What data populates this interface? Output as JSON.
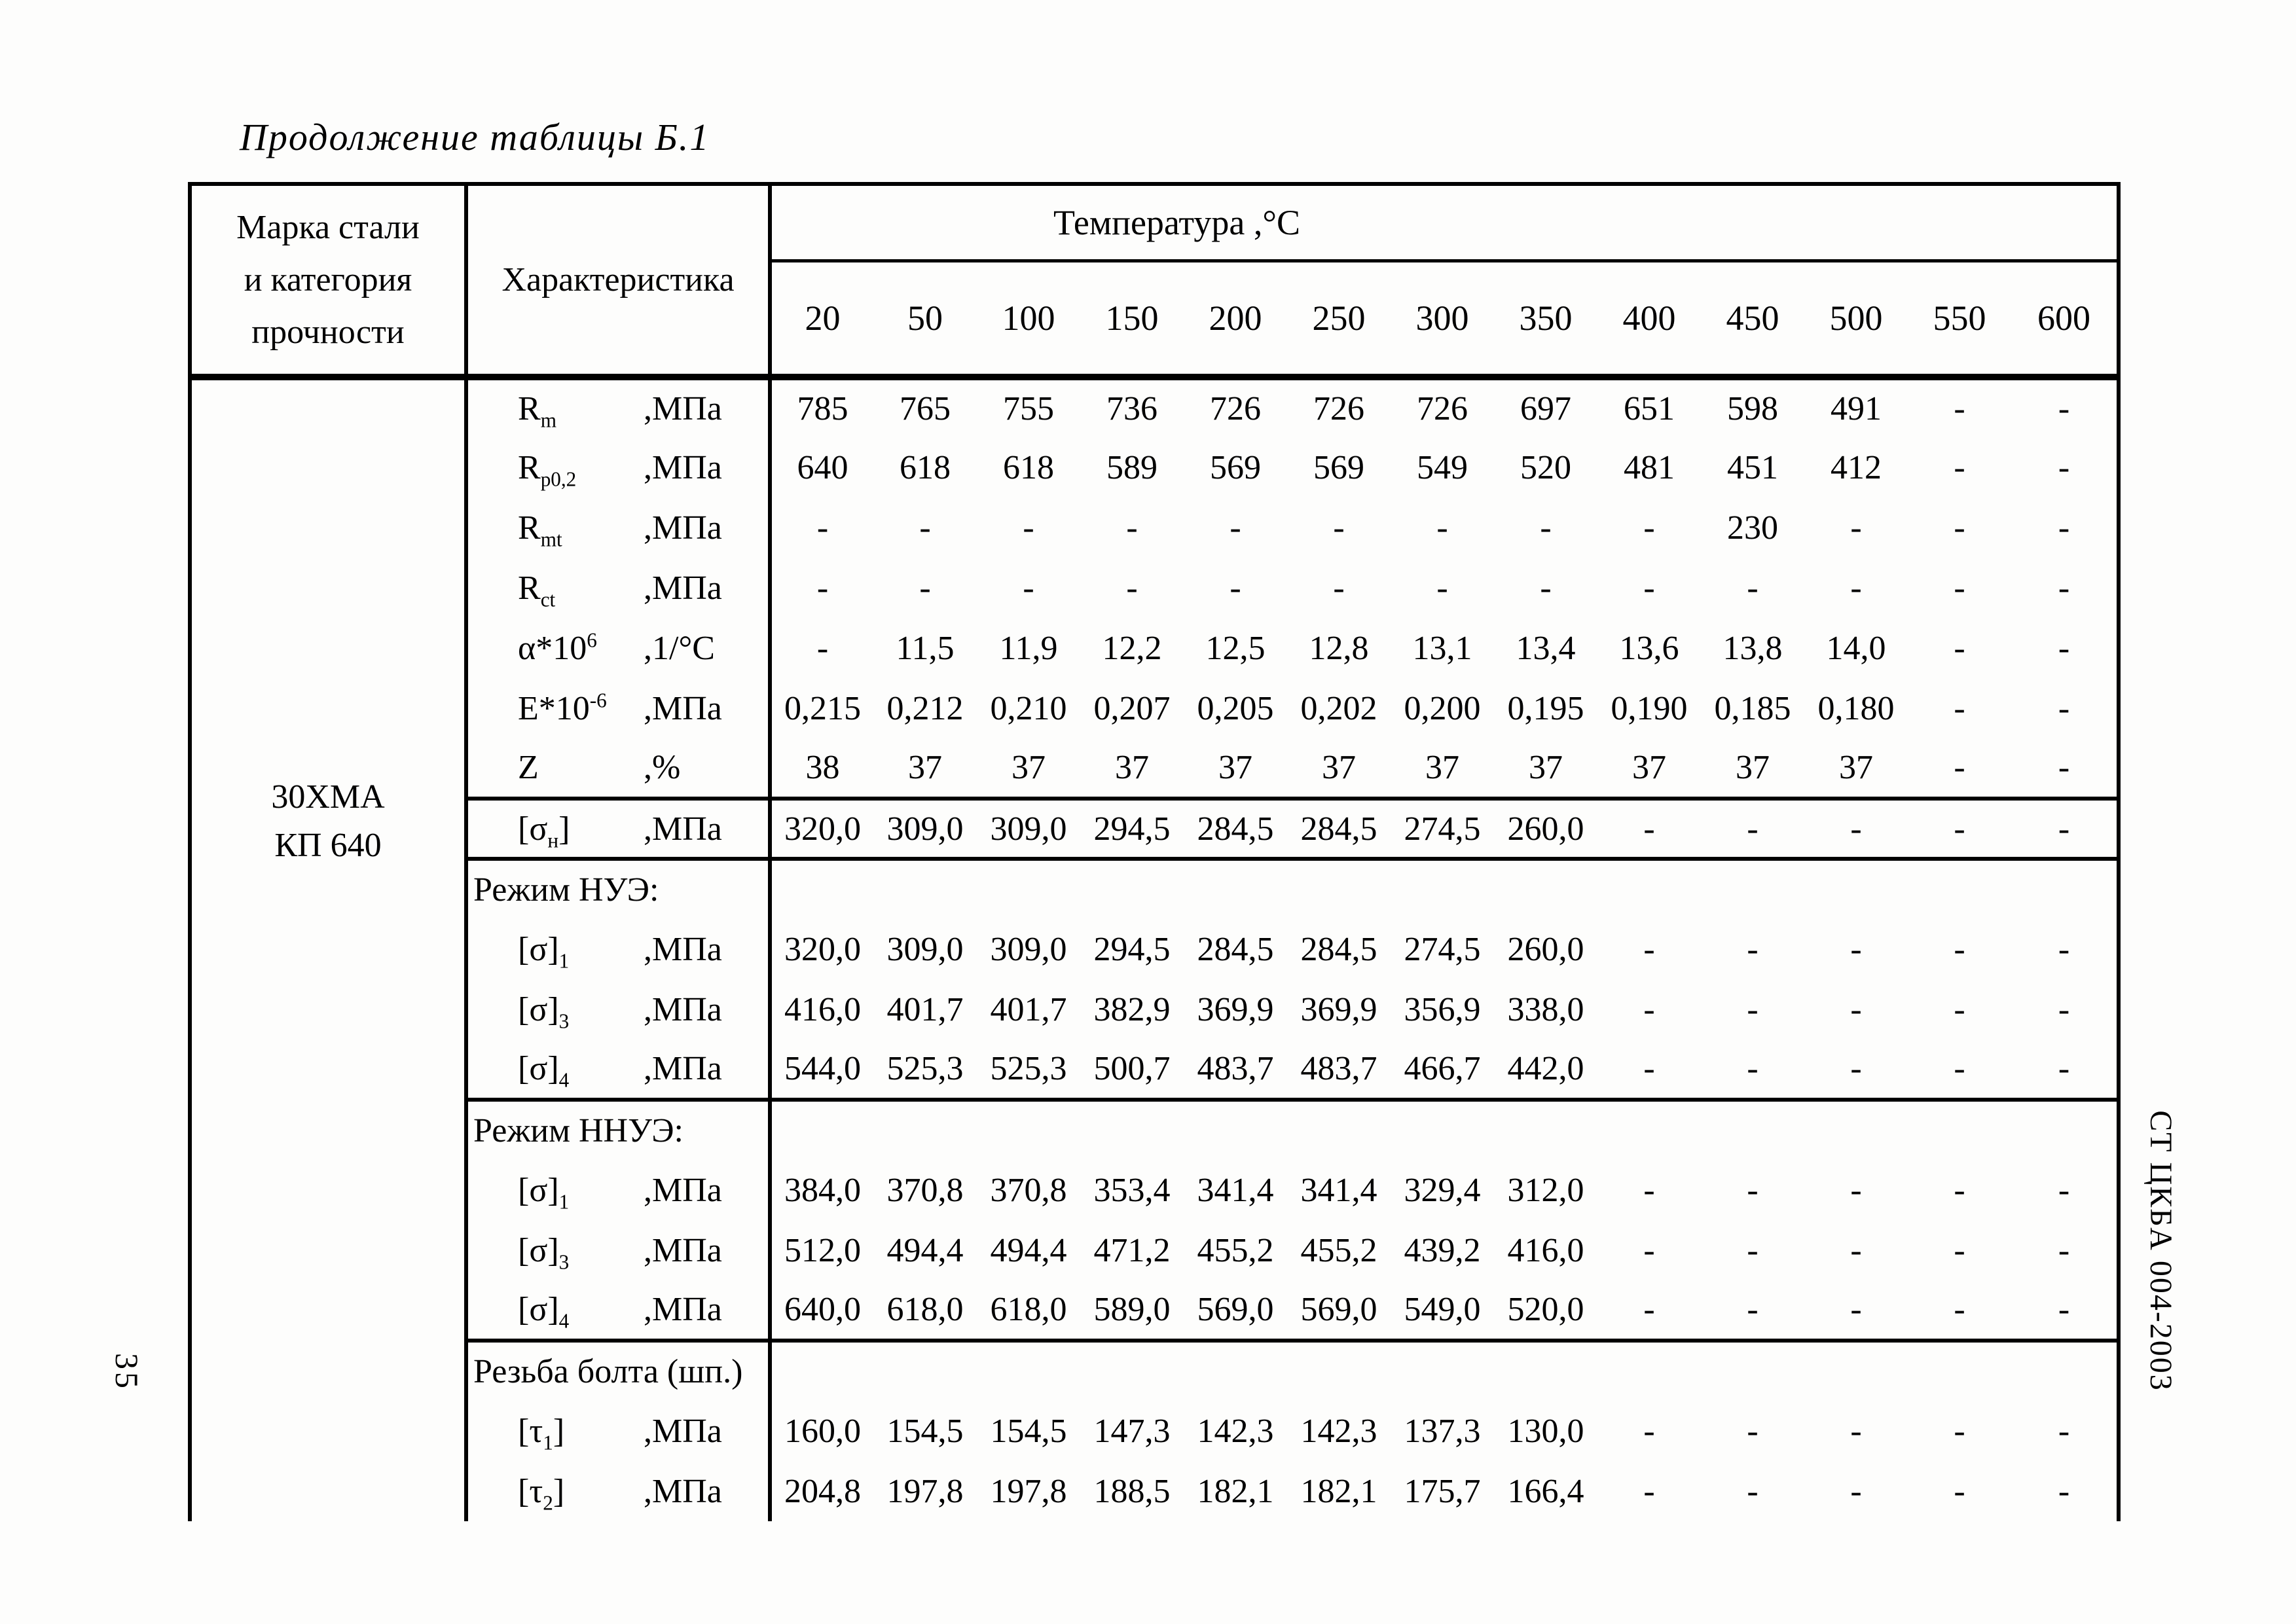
{
  "page": {
    "caption": "Продолжение таблицы Б.1",
    "left_margin_number": "35",
    "right_margin_text": "СТ ЦКБА 004-2003"
  },
  "table": {
    "header": {
      "col1_lines": [
        "Марка стали",
        "и категория",
        "прочности"
      ],
      "col2": "Характеристика",
      "temp_title": "Температура ,°С",
      "temps": [
        "20",
        "50",
        "100",
        "150",
        "200",
        "250",
        "300",
        "350",
        "400",
        "450",
        "500",
        "550",
        "600"
      ]
    },
    "steel": {
      "line1": "30ХМА",
      "line2": "КП 640"
    },
    "rows": [
      {
        "type": "data",
        "base": "R",
        "sub": "m",
        "unit": ",МПа",
        "values": [
          "785",
          "765",
          "755",
          "736",
          "726",
          "726",
          "726",
          "697",
          "651",
          "598",
          "491",
          "-",
          "-"
        ]
      },
      {
        "type": "data",
        "base": "R",
        "sub": "p0,2",
        "unit": ",МПа",
        "values": [
          "640",
          "618",
          "618",
          "589",
          "569",
          "569",
          "549",
          "520",
          "481",
          "451",
          "412",
          "-",
          "-"
        ]
      },
      {
        "type": "data",
        "base": "R",
        "sub": "mt",
        "unit": ",МПа",
        "values": [
          "-",
          "-",
          "-",
          "-",
          "-",
          "-",
          "-",
          "-",
          "-",
          "230",
          "-",
          "-",
          "-"
        ]
      },
      {
        "type": "data",
        "base": "R",
        "sub": "ct",
        "unit": ",МПа",
        "values": [
          "-",
          "-",
          "-",
          "-",
          "-",
          "-",
          "-",
          "-",
          "-",
          "-",
          "-",
          "-",
          "-"
        ]
      },
      {
        "type": "data",
        "base": "α*10",
        "sup": "6",
        "unit": ",1/°С",
        "values": [
          "-",
          "11,5",
          "11,9",
          "12,2",
          "12,5",
          "12,8",
          "13,1",
          "13,4",
          "13,6",
          "13,8",
          "14,0",
          "-",
          "-"
        ]
      },
      {
        "type": "data",
        "base": "E*10",
        "sup": "-6",
        "unit": ",МПа",
        "values": [
          "0,215",
          "0,212",
          "0,210",
          "0,207",
          "0,205",
          "0,202",
          "0,200",
          "0,195",
          "0,190",
          "0,185",
          "0,180",
          "-",
          "-"
        ]
      },
      {
        "type": "data",
        "base": "Z",
        "unit": ",%",
        "values": [
          "38",
          "37",
          "37",
          "37",
          "37",
          "37",
          "37",
          "37",
          "37",
          "37",
          "37",
          "-",
          "-"
        ]
      },
      {
        "type": "data",
        "sep_top": true,
        "sep_bottom": true,
        "base": "[σ",
        "sub": "н",
        "post": "]",
        "unit": ",МПа",
        "values": [
          "320,0",
          "309,0",
          "309,0",
          "294,5",
          "284,5",
          "284,5",
          "274,5",
          "260,0",
          "-",
          "-",
          "-",
          "-",
          "-"
        ]
      },
      {
        "type": "section",
        "label": "Режим НУЭ:"
      },
      {
        "type": "data",
        "base": "[σ]",
        "sub": "1",
        "unit": ",МПа",
        "values": [
          "320,0",
          "309,0",
          "309,0",
          "294,5",
          "284,5",
          "284,5",
          "274,5",
          "260,0",
          "-",
          "-",
          "-",
          "-",
          "-"
        ]
      },
      {
        "type": "data",
        "base": "[σ]",
        "sub": "3",
        "unit": ",МПа",
        "values": [
          "416,0",
          "401,7",
          "401,7",
          "382,9",
          "369,9",
          "369,9",
          "356,9",
          "338,0",
          "-",
          "-",
          "-",
          "-",
          "-"
        ]
      },
      {
        "type": "data",
        "base": "[σ]",
        "sub": "4",
        "unit": ",МПа",
        "values": [
          "544,0",
          "525,3",
          "525,3",
          "500,7",
          "483,7",
          "483,7",
          "466,7",
          "442,0",
          "-",
          "-",
          "-",
          "-",
          "-"
        ]
      },
      {
        "type": "section",
        "sep_top": true,
        "label": "Режим ННУЭ:"
      },
      {
        "type": "data",
        "base": "[σ]",
        "sub": "1",
        "unit": ",МПа",
        "values": [
          "384,0",
          "370,8",
          "370,8",
          "353,4",
          "341,4",
          "341,4",
          "329,4",
          "312,0",
          "-",
          "-",
          "-",
          "-",
          "-"
        ]
      },
      {
        "type": "data",
        "base": "[σ]",
        "sub": "3",
        "unit": ",МПа",
        "values": [
          "512,0",
          "494,4",
          "494,4",
          "471,2",
          "455,2",
          "455,2",
          "439,2",
          "416,0",
          "-",
          "-",
          "-",
          "-",
          "-"
        ]
      },
      {
        "type": "data",
        "base": "[σ]",
        "sub": "4",
        "unit": ",МПа",
        "values": [
          "640,0",
          "618,0",
          "618,0",
          "589,0",
          "569,0",
          "569,0",
          "549,0",
          "520,0",
          "-",
          "-",
          "-",
          "-",
          "-"
        ]
      },
      {
        "type": "section",
        "sep_top": true,
        "label": "Резьба болта (шп.)"
      },
      {
        "type": "data",
        "base": "[τ",
        "sub": "1",
        "post": "]",
        "unit": ",МПа",
        "values": [
          "160,0",
          "154,5",
          "154,5",
          "147,3",
          "142,3",
          "142,3",
          "137,3",
          "130,0",
          "-",
          "-",
          "-",
          "-",
          "-"
        ]
      },
      {
        "type": "data",
        "base": "[τ",
        "sub": "2",
        "post": "]",
        "unit": ",МПа",
        "values": [
          "204,8",
          "197,8",
          "197,8",
          "188,5",
          "182,1",
          "182,1",
          "175,7",
          "166,4",
          "-",
          "-",
          "-",
          "-",
          "-"
        ]
      }
    ]
  }
}
